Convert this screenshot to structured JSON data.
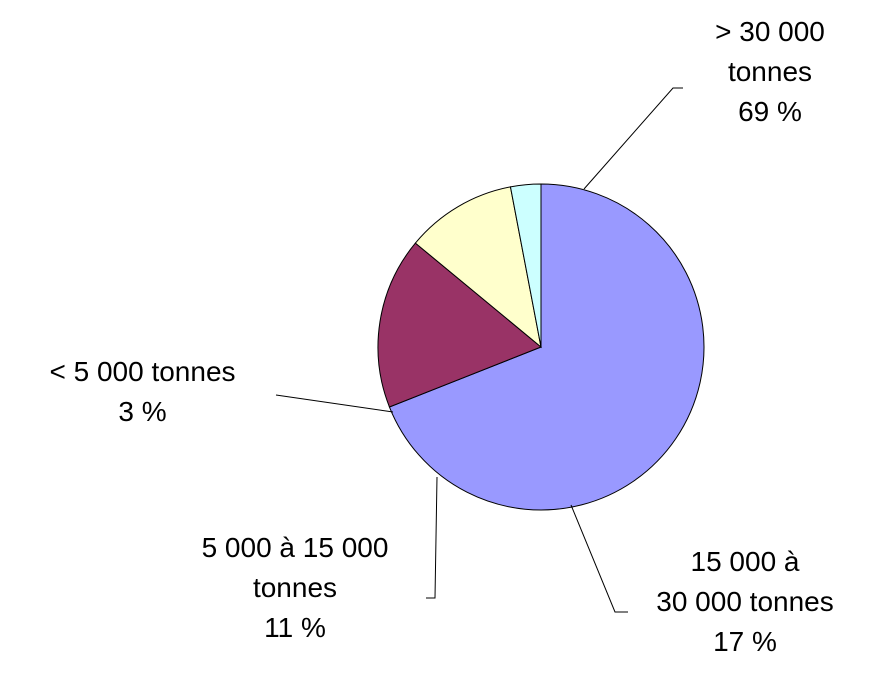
{
  "chart_data": {
    "type": "pie",
    "title": "",
    "slices": [
      {
        "label_lines": [
          "> 30 000",
          "tonnes"
        ],
        "value": 69,
        "value_label": "69 %",
        "color": "#9999ff"
      },
      {
        "label_lines": [
          "15 000 à",
          "30 000 tonnes"
        ],
        "value": 17,
        "value_label": "17 %",
        "color": "#993366"
      },
      {
        "label_lines": [
          "5 000 à 15 000",
          "tonnes"
        ],
        "value": 11,
        "value_label": "11 %",
        "color": "#ffffcc"
      },
      {
        "label_lines": [
          "< 5 000 tonnes"
        ],
        "value": 3,
        "value_label": "3 %",
        "color": "#ccffff"
      }
    ],
    "start_angle_deg": 0,
    "direction": "clockwise",
    "label_placement": "outside with leader lines"
  }
}
